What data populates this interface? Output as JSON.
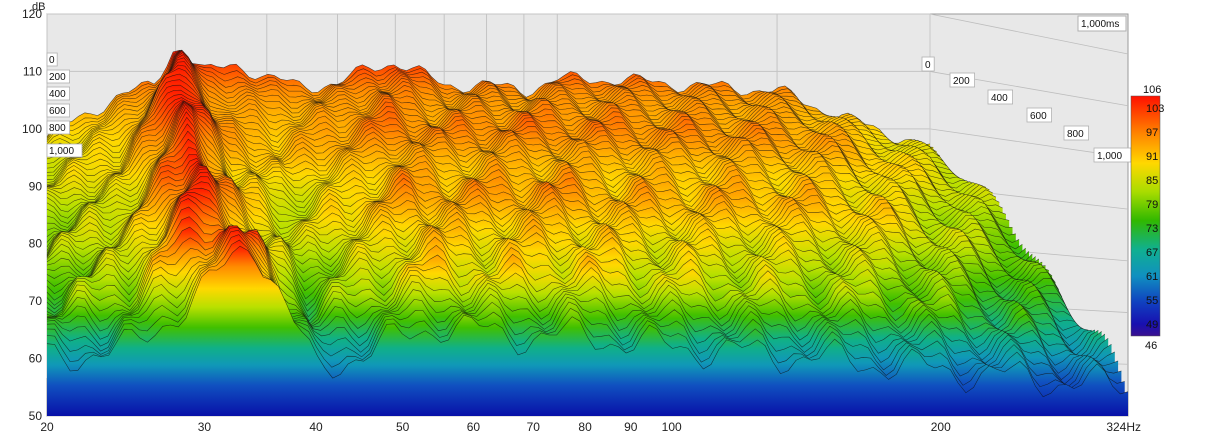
{
  "chart_data": {
    "type": "waterfall",
    "y_unit": "dB",
    "x_unit": "Hz",
    "ylim": [
      50,
      120
    ],
    "xlim": [
      20,
      324
    ],
    "x_scale": "log",
    "y_ticks": [
      "120",
      "110",
      "100",
      "90",
      "80",
      "70",
      "60",
      "50"
    ],
    "x_ticks": [
      "20",
      "30",
      "40",
      "50",
      "60",
      "70",
      "80",
      "90",
      "100",
      "200",
      "324Hz"
    ],
    "time_label_max": "1,000ms",
    "time_ticks_left": [
      "0",
      "200",
      "400",
      "600",
      "800",
      "1,000"
    ],
    "time_ticks_right": [
      "0",
      "200",
      "400",
      "600",
      "800",
      "1,000"
    ],
    "time_range_ms": [
      0,
      1000
    ],
    "grid": true,
    "colorbar": {
      "max_label": "106",
      "min_label": "46",
      "ticks": [
        "103",
        "97",
        "91",
        "85",
        "79",
        "73",
        "67",
        "61",
        "55",
        "49"
      ],
      "colors": [
        "#ff2000",
        "#ff8000",
        "#ffd400",
        "#c8e000",
        "#5cc800",
        "#18b070",
        "#10a0b0",
        "#1060c0",
        "#0c20b0",
        "#301090"
      ]
    },
    "series": [
      {
        "name": "0",
        "points": [
          [
            20,
            92
          ],
          [
            22,
            95
          ],
          [
            25,
            99
          ],
          [
            28,
            101
          ],
          [
            30,
            108
          ],
          [
            33,
            103
          ],
          [
            36,
            105
          ],
          [
            40,
            102
          ],
          [
            45,
            101
          ],
          [
            50,
            101
          ],
          [
            55,
            104
          ],
          [
            60,
            105
          ],
          [
            65,
            103
          ],
          [
            70,
            101
          ],
          [
            80,
            101
          ],
          [
            90,
            100
          ],
          [
            100,
            102
          ],
          [
            120,
            102
          ],
          [
            150,
            101
          ],
          [
            200,
            100
          ],
          [
            250,
            95
          ],
          [
            324,
            90
          ]
        ]
      },
      {
        "name": "200",
        "points": [
          [
            20,
            88
          ],
          [
            25,
            92
          ],
          [
            30,
            106
          ],
          [
            34,
            96
          ],
          [
            40,
            94
          ],
          [
            55,
            99
          ],
          [
            65,
            97
          ],
          [
            80,
            98
          ],
          [
            100,
            98
          ],
          [
            150,
            97
          ],
          [
            200,
            96
          ],
          [
            324,
            86
          ]
        ]
      },
      {
        "name": "400",
        "points": [
          [
            20,
            82
          ],
          [
            25,
            86
          ],
          [
            30,
            100
          ],
          [
            34,
            90
          ],
          [
            40,
            86
          ],
          [
            55,
            93
          ],
          [
            65,
            92
          ],
          [
            80,
            93
          ],
          [
            100,
            92
          ],
          [
            150,
            92
          ],
          [
            200,
            90
          ],
          [
            324,
            80
          ]
        ]
      },
      {
        "name": "600",
        "points": [
          [
            20,
            76
          ],
          [
            25,
            80
          ],
          [
            30,
            93
          ],
          [
            34,
            84
          ],
          [
            40,
            78
          ],
          [
            55,
            86
          ],
          [
            65,
            85
          ],
          [
            80,
            86
          ],
          [
            100,
            84
          ],
          [
            150,
            84
          ],
          [
            200,
            82
          ],
          [
            324,
            72
          ]
        ]
      },
      {
        "name": "800",
        "points": [
          [
            20,
            70
          ],
          [
            25,
            74
          ],
          [
            30,
            86
          ],
          [
            34,
            80
          ],
          [
            40,
            70
          ],
          [
            55,
            78
          ],
          [
            65,
            77
          ],
          [
            80,
            78
          ],
          [
            100,
            76
          ],
          [
            150,
            74
          ],
          [
            200,
            72
          ],
          [
            324,
            64
          ]
        ]
      },
      {
        "name": "1,000",
        "points": [
          [
            20,
            60
          ],
          [
            25,
            62
          ],
          [
            30,
            72
          ],
          [
            34,
            81
          ],
          [
            40,
            58
          ],
          [
            55,
            66
          ],
          [
            65,
            64
          ],
          [
            80,
            64
          ],
          [
            100,
            62
          ],
          [
            150,
            60
          ],
          [
            200,
            58
          ],
          [
            324,
            55
          ]
        ]
      }
    ]
  }
}
